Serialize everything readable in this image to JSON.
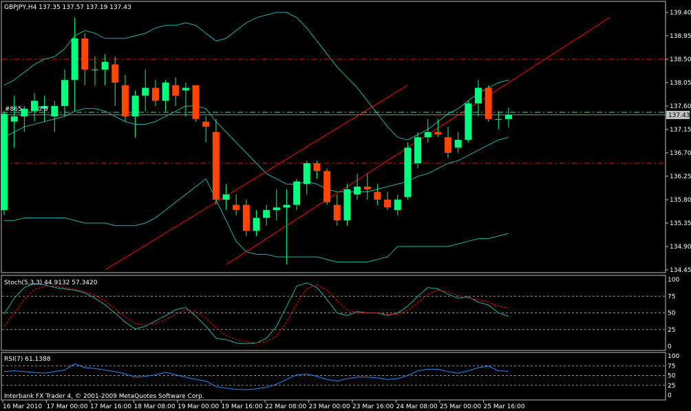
{
  "colors": {
    "background": "#000000",
    "axis": "#c0c0c0",
    "bull": "#00ff7f",
    "bear": "#ff4500",
    "bands": "#20b2aa",
    "level_line": "#ff0000",
    "channel": "#ff0000",
    "stoch_main": "#20b2aa",
    "stoch_signal": "#ff0000",
    "rsi": "#1e90ff",
    "bid_line": "#c0c0c0",
    "green_level": "#00ff7f"
  },
  "main_panel": {
    "header": "GBPJPY,H4  137.35 137.57 137.19 137.43",
    "trade_label": "#865",
    "trade_label_2": "0.b",
    "current_price_label": "137.43",
    "price_ticks": [
      "139.40",
      "138.95",
      "138.50",
      "138.05",
      "137.60",
      "137.15",
      "136.70",
      "136.25",
      "135.80",
      "135.35",
      "134.90",
      "134.45"
    ]
  },
  "stoch_panel": {
    "header": "Stoch(5,3,3) 44.9132 57.3420",
    "ticks": [
      "100",
      "75",
      "50",
      "25",
      "0"
    ]
  },
  "rsi_panel": {
    "header": "RSI(7) 61.1388",
    "ticks": [
      "100",
      "75",
      "50",
      "25",
      "0"
    ]
  },
  "footer_note": "Interbank FX Trader 4, © 2001-2009 MetaQuotes Software Corp.",
  "time_labels": [
    "16 Mar 2010",
    "17 Mar 00:00",
    "17 Mar 16:00",
    "18 Mar 08:00",
    "19 Mar 00:00",
    "19 Mar 16:00",
    "22 Mar 08:00",
    "23 Mar 00:00",
    "23 Mar 16:00",
    "24 Mar 08:00",
    "25 Mar 00:00",
    "25 Mar 16:00"
  ],
  "chart_data": {
    "type": "candlestick",
    "symbol": "GBPJPY",
    "timeframe": "H4",
    "ylim": [
      134.45,
      139.4
    ],
    "horizontal_levels": {
      "resistance": 138.5,
      "support": 136.5,
      "entry_level": 137.48,
      "bid": 137.43
    },
    "candles": [
      {
        "o": 135.6,
        "h": 137.5,
        "l": 135.5,
        "c": 137.45
      },
      {
        "o": 137.3,
        "h": 137.8,
        "l": 136.8,
        "c": 137.4
      },
      {
        "o": 137.4,
        "h": 137.6,
        "l": 137.1,
        "c": 137.55
      },
      {
        "o": 137.5,
        "h": 137.85,
        "l": 137.3,
        "c": 137.7
      },
      {
        "o": 137.55,
        "h": 137.8,
        "l": 137.3,
        "c": 137.6
      },
      {
        "o": 137.4,
        "h": 137.7,
        "l": 137.1,
        "c": 137.6
      },
      {
        "o": 137.6,
        "h": 138.3,
        "l": 137.4,
        "c": 138.1
      },
      {
        "o": 138.1,
        "h": 139.3,
        "l": 137.5,
        "c": 138.9
      },
      {
        "o": 138.9,
        "h": 139.0,
        "l": 138.0,
        "c": 138.3
      },
      {
        "o": 138.3,
        "h": 138.55,
        "l": 138.0,
        "c": 138.3
      },
      {
        "o": 138.3,
        "h": 138.6,
        "l": 138.0,
        "c": 138.45
      },
      {
        "o": 138.4,
        "h": 138.55,
        "l": 137.6,
        "c": 138.05
      },
      {
        "o": 138.0,
        "h": 138.2,
        "l": 137.3,
        "c": 137.4
      },
      {
        "o": 137.4,
        "h": 137.9,
        "l": 137.0,
        "c": 137.8
      },
      {
        "o": 137.8,
        "h": 138.3,
        "l": 137.5,
        "c": 137.95
      },
      {
        "o": 137.95,
        "h": 138.1,
        "l": 137.6,
        "c": 137.7
      },
      {
        "o": 137.7,
        "h": 138.1,
        "l": 137.5,
        "c": 138.05
      },
      {
        "o": 138.0,
        "h": 138.15,
        "l": 137.6,
        "c": 137.8
      },
      {
        "o": 137.9,
        "h": 138.05,
        "l": 137.4,
        "c": 137.95
      },
      {
        "o": 138.0,
        "h": 138.0,
        "l": 137.3,
        "c": 137.35
      },
      {
        "o": 137.3,
        "h": 137.4,
        "l": 136.9,
        "c": 137.2
      },
      {
        "o": 137.1,
        "h": 137.35,
        "l": 135.7,
        "c": 135.8
      },
      {
        "o": 135.8,
        "h": 136.1,
        "l": 135.6,
        "c": 135.9
      },
      {
        "o": 135.7,
        "h": 135.9,
        "l": 135.5,
        "c": 135.6
      },
      {
        "o": 135.7,
        "h": 135.8,
        "l": 135.1,
        "c": 135.2
      },
      {
        "o": 135.2,
        "h": 135.6,
        "l": 135.1,
        "c": 135.45
      },
      {
        "o": 135.45,
        "h": 135.7,
        "l": 135.3,
        "c": 135.6
      },
      {
        "o": 135.6,
        "h": 136.0,
        "l": 135.4,
        "c": 135.65
      },
      {
        "o": 135.65,
        "h": 136.0,
        "l": 134.55,
        "c": 135.7
      },
      {
        "o": 135.7,
        "h": 136.2,
        "l": 135.6,
        "c": 136.15
      },
      {
        "o": 136.1,
        "h": 136.55,
        "l": 135.9,
        "c": 136.5
      },
      {
        "o": 136.5,
        "h": 136.55,
        "l": 136.2,
        "c": 136.35
      },
      {
        "o": 136.35,
        "h": 136.4,
        "l": 135.7,
        "c": 135.75
      },
      {
        "o": 135.7,
        "h": 135.9,
        "l": 135.3,
        "c": 135.4
      },
      {
        "o": 135.4,
        "h": 136.1,
        "l": 135.3,
        "c": 136.0
      },
      {
        "o": 135.9,
        "h": 136.3,
        "l": 135.8,
        "c": 136.05
      },
      {
        "o": 136.05,
        "h": 136.3,
        "l": 135.8,
        "c": 136.0
      },
      {
        "o": 135.95,
        "h": 136.1,
        "l": 135.7,
        "c": 135.8
      },
      {
        "o": 135.8,
        "h": 135.95,
        "l": 135.6,
        "c": 135.65
      },
      {
        "o": 135.6,
        "h": 135.9,
        "l": 135.5,
        "c": 135.8
      },
      {
        "o": 135.85,
        "h": 136.9,
        "l": 135.8,
        "c": 136.8
      },
      {
        "o": 136.5,
        "h": 137.1,
        "l": 136.4,
        "c": 137.0
      },
      {
        "o": 137.0,
        "h": 137.35,
        "l": 136.9,
        "c": 137.1
      },
      {
        "o": 137.1,
        "h": 137.35,
        "l": 137.0,
        "c": 137.05
      },
      {
        "o": 137.0,
        "h": 137.2,
        "l": 136.6,
        "c": 136.7
      },
      {
        "o": 136.8,
        "h": 137.1,
        "l": 136.7,
        "c": 136.95
      },
      {
        "o": 136.95,
        "h": 137.7,
        "l": 136.9,
        "c": 137.65
      },
      {
        "o": 137.65,
        "h": 138.1,
        "l": 137.4,
        "c": 137.95
      },
      {
        "o": 137.95,
        "h": 138.0,
        "l": 137.3,
        "c": 137.35
      },
      {
        "o": 137.35,
        "h": 137.5,
        "l": 137.15,
        "c": 137.35
      },
      {
        "o": 137.35,
        "h": 137.57,
        "l": 137.19,
        "c": 137.43
      }
    ],
    "bollinger": {
      "upper": [
        138.0,
        138.1,
        138.25,
        138.4,
        138.5,
        138.55,
        138.7,
        138.95,
        139.05,
        139.0,
        138.9,
        138.9,
        138.9,
        138.95,
        139.0,
        139.1,
        139.15,
        139.15,
        139.2,
        139.15,
        139.0,
        138.85,
        138.9,
        139.05,
        139.2,
        139.3,
        139.35,
        139.4,
        139.4,
        139.3,
        139.1,
        138.85,
        138.6,
        138.35,
        138.15,
        137.95,
        137.7,
        137.45,
        137.2,
        137.0,
        136.95,
        137.05,
        137.15,
        137.3,
        137.45,
        137.55,
        137.7,
        137.85,
        137.95,
        138.05,
        138.1
      ],
      "middle": [
        137.0,
        137.1,
        137.2,
        137.25,
        137.3,
        137.35,
        137.4,
        137.5,
        137.55,
        137.55,
        137.5,
        137.4,
        137.3,
        137.25,
        137.25,
        137.3,
        137.4,
        137.5,
        137.6,
        137.6,
        137.55,
        137.3,
        137.1,
        136.9,
        136.7,
        136.5,
        136.3,
        136.2,
        136.1,
        136.1,
        136.15,
        136.1,
        136.0,
        135.95,
        135.95,
        135.95,
        135.95,
        136.0,
        136.05,
        136.1,
        136.15,
        136.25,
        136.3,
        136.4,
        136.5,
        136.55,
        136.65,
        136.75,
        136.85,
        136.95,
        137.0
      ],
      "lower": [
        135.4,
        135.4,
        135.45,
        135.45,
        135.45,
        135.45,
        135.45,
        135.4,
        135.35,
        135.35,
        135.35,
        135.3,
        135.3,
        135.3,
        135.35,
        135.45,
        135.6,
        135.75,
        135.9,
        136.05,
        136.2,
        135.8,
        135.4,
        135.0,
        134.8,
        134.75,
        134.75,
        134.7,
        134.7,
        134.7,
        134.7,
        134.7,
        134.65,
        134.6,
        134.6,
        134.6,
        134.6,
        134.65,
        134.7,
        134.9,
        134.9,
        134.9,
        134.9,
        134.9,
        134.9,
        134.95,
        135.0,
        135.05,
        135.05,
        135.1,
        135.15
      ]
    },
    "channel_lines": [
      {
        "from": [
          10,
          134.45
        ],
        "to": [
          40,
          138.0
        ]
      },
      {
        "from": [
          22,
          134.55
        ],
        "to": [
          60,
          139.3
        ]
      }
    ],
    "stochastic": {
      "main": [
        48,
        72,
        88,
        94,
        92,
        88,
        86,
        84,
        80,
        72,
        62,
        50,
        36,
        26,
        30,
        38,
        46,
        55,
        58,
        45,
        30,
        12,
        10,
        5,
        4,
        5,
        12,
        30,
        60,
        90,
        95,
        88,
        70,
        50,
        46,
        52,
        50,
        50,
        46,
        50,
        60,
        75,
        88,
        86,
        78,
        72,
        74,
        66,
        62,
        50,
        45
      ],
      "signal": [
        30,
        50,
        70,
        85,
        90,
        90,
        88,
        85,
        82,
        76,
        68,
        56,
        44,
        34,
        32,
        34,
        40,
        48,
        55,
        52,
        42,
        28,
        16,
        10,
        7,
        5,
        7,
        15,
        36,
        64,
        86,
        92,
        84,
        68,
        54,
        50,
        50,
        50,
        48,
        48,
        54,
        65,
        78,
        84,
        82,
        76,
        72,
        70,
        66,
        60,
        57
      ]
    },
    "rsi": {
      "values": [
        60,
        62,
        60,
        58,
        56,
        60,
        64,
        80,
        70,
        68,
        64,
        60,
        54,
        46,
        48,
        52,
        58,
        52,
        46,
        40,
        36,
        22,
        18,
        15,
        14,
        16,
        20,
        28,
        40,
        52,
        54,
        48,
        40,
        36,
        42,
        46,
        46,
        44,
        40,
        42,
        50,
        62,
        66,
        66,
        60,
        56,
        62,
        70,
        74,
        62,
        61
      ]
    }
  }
}
